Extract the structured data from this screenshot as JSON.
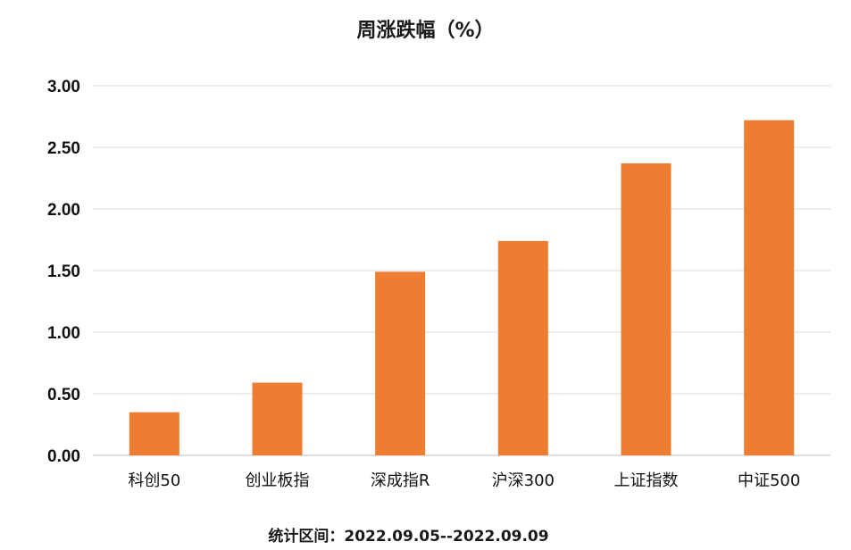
{
  "chart_data": {
    "type": "bar",
    "title": "周涨跌幅（%）",
    "categories": [
      "科创50",
      "创业板指",
      "深成指R",
      "沪深300",
      "上证指数",
      "中证500"
    ],
    "values": [
      0.35,
      0.59,
      1.49,
      1.74,
      2.37,
      2.72
    ],
    "ylim": [
      0,
      3.0
    ],
    "yticks": [
      "0.00",
      "0.50",
      "1.00",
      "1.50",
      "2.00",
      "2.50",
      "3.00"
    ],
    "xlabel": "",
    "ylabel": "",
    "grid": true,
    "bar_color": "#ED7D31",
    "grid_color": "#D9D9D9"
  },
  "footer": {
    "note": "统计区间：2022.09.05--2022.09.09"
  }
}
